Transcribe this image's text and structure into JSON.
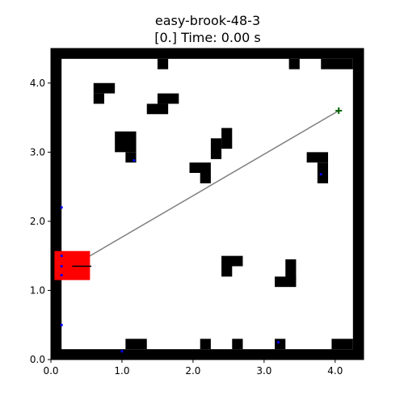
{
  "chart_data": {
    "type": "scatter",
    "title": "easy-brook-48-3",
    "subtitle": "[0.] Time: 0.00 s",
    "xlabel": "",
    "ylabel": "",
    "xlim": [
      0,
      4.4
    ],
    "ylim": [
      0,
      4.5
    ],
    "xticks": [
      0.0,
      1.0,
      2.0,
      3.0,
      4.0
    ],
    "xtick_labels": [
      "0.0",
      "1.0",
      "2.0",
      "3.0",
      "4.0"
    ],
    "yticks": [
      0.0,
      1.0,
      2.0,
      3.0,
      4.0
    ],
    "ytick_labels": [
      "0.0",
      "1.0",
      "2.0",
      "3.0",
      "4.0"
    ],
    "grid": false,
    "wall_color": "#000000",
    "outer_walls": [
      [
        0.0,
        0.0,
        4.4,
        0.15
      ],
      [
        0.0,
        4.35,
        4.4,
        0.15
      ],
      [
        0.0,
        0.0,
        0.15,
        4.5
      ],
      [
        4.25,
        0.0,
        0.15,
        4.5
      ]
    ],
    "obstacles": [
      [
        1.5,
        4.2,
        0.15,
        0.15
      ],
      [
        3.35,
        4.2,
        0.15,
        0.15
      ],
      [
        3.8,
        4.2,
        0.45,
        0.15
      ],
      [
        0.6,
        3.85,
        0.3,
        0.15
      ],
      [
        0.6,
        3.7,
        0.15,
        0.15
      ],
      [
        1.5,
        3.7,
        0.3,
        0.15
      ],
      [
        1.35,
        3.55,
        0.3,
        0.15
      ],
      [
        0.9,
        3.0,
        0.3,
        0.3
      ],
      [
        1.05,
        2.85,
        0.15,
        0.15
      ],
      [
        2.4,
        3.05,
        0.15,
        0.3
      ],
      [
        2.25,
        2.9,
        0.15,
        0.3
      ],
      [
        1.95,
        2.7,
        0.3,
        0.15
      ],
      [
        2.1,
        2.55,
        0.15,
        0.15
      ],
      [
        3.6,
        2.85,
        0.3,
        0.15
      ],
      [
        3.75,
        2.55,
        0.15,
        0.3
      ],
      [
        2.4,
        1.35,
        0.3,
        0.15
      ],
      [
        2.4,
        1.2,
        0.15,
        0.15
      ],
      [
        3.3,
        1.15,
        0.15,
        0.3
      ],
      [
        3.15,
        1.05,
        0.3,
        0.15
      ],
      [
        1.05,
        0.15,
        0.3,
        0.15
      ],
      [
        2.1,
        0.15,
        0.15,
        0.15
      ],
      [
        2.55,
        0.15,
        0.15,
        0.15
      ],
      [
        3.15,
        0.15,
        0.15,
        0.15
      ],
      [
        3.95,
        0.15,
        0.3,
        0.15
      ]
    ],
    "robot": {
      "color": "#ff0000",
      "bounds": [
        0.05,
        1.15,
        0.55,
        1.57
      ],
      "center": [
        0.3,
        1.35
      ],
      "heading_end": [
        0.57,
        1.35
      ]
    },
    "path_color": "#808080",
    "path_line": [
      [
        0.3,
        1.35
      ],
      [
        4.05,
        3.6
      ]
    ],
    "goal": {
      "point": [
        4.05,
        3.6
      ],
      "color": "#006400"
    },
    "sensor_color": "#0000ff",
    "sensor_points": [
      [
        0.15,
        2.2
      ],
      [
        0.15,
        1.5
      ],
      [
        0.15,
        1.35
      ],
      [
        0.15,
        1.22
      ],
      [
        0.15,
        0.5
      ],
      [
        1.0,
        0.12
      ],
      [
        1.17,
        2.88
      ],
      [
        3.8,
        2.68
      ],
      [
        3.2,
        0.25
      ]
    ]
  }
}
